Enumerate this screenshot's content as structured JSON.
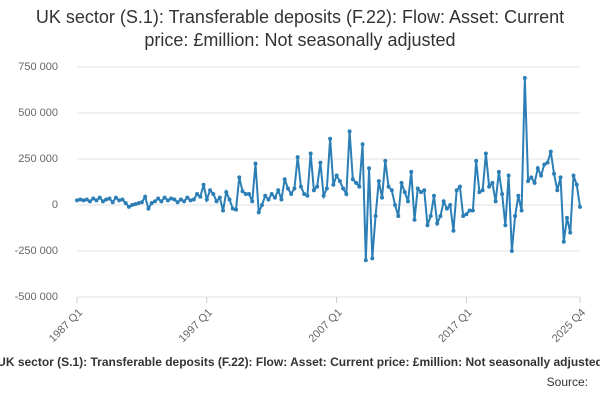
{
  "chart_data": {
    "type": "line",
    "title": "UK sector (S.1): Transferable deposits (F.22): Flow: Asset: Current price: £million: Not seasonally adjusted",
    "source_label": "Source:",
    "categories": [
      "1987 Q1",
      null,
      null,
      null,
      null,
      null,
      null,
      null,
      null,
      null,
      null,
      null,
      null,
      null,
      null,
      null,
      null,
      null,
      null,
      null,
      null,
      null,
      null,
      null,
      null,
      null,
      null,
      null,
      null,
      null,
      null,
      null,
      null,
      null,
      null,
      null,
      null,
      null,
      null,
      null,
      "1997 Q1",
      null,
      null,
      null,
      null,
      null,
      null,
      null,
      null,
      null,
      null,
      null,
      null,
      null,
      null,
      null,
      null,
      null,
      null,
      null,
      null,
      null,
      null,
      null,
      null,
      null,
      null,
      null,
      null,
      null,
      null,
      null,
      null,
      null,
      null,
      null,
      null,
      null,
      null,
      null,
      "2007 Q1",
      null,
      null,
      null,
      null,
      null,
      null,
      null,
      null,
      null,
      null,
      null,
      null,
      null,
      null,
      null,
      null,
      null,
      null,
      null,
      null,
      null,
      null,
      null,
      null,
      null,
      null,
      null,
      null,
      null,
      null,
      null,
      null,
      null,
      null,
      null,
      null,
      null,
      null,
      null,
      "2017 Q1",
      null,
      null,
      null,
      null,
      null,
      null,
      null,
      null,
      null,
      null,
      null,
      null,
      null,
      null,
      null,
      null,
      null,
      null,
      null,
      null,
      null,
      null,
      null,
      null,
      null,
      null,
      null,
      null,
      null,
      null,
      null,
      null,
      null,
      null,
      "2025 Q4"
    ],
    "series": [
      {
        "name": "UK sector (S.1): Transferable deposits (F.22): Flow: Asset: Current price: £million: Not seasonally adjusted",
        "color": "#2b7fb6",
        "values": [
          25000,
          30000,
          25000,
          30000,
          20000,
          35000,
          25000,
          40000,
          20000,
          30000,
          35000,
          15000,
          40000,
          25000,
          30000,
          10000,
          -10000,
          0,
          5000,
          10000,
          15000,
          45000,
          -20000,
          10000,
          20000,
          35000,
          20000,
          40000,
          25000,
          35000,
          30000,
          15000,
          30000,
          20000,
          40000,
          25000,
          30000,
          60000,
          45000,
          110000,
          30000,
          80000,
          60000,
          20000,
          40000,
          -30000,
          70000,
          30000,
          -20000,
          -25000,
          150000,
          75000,
          60000,
          60000,
          20000,
          225000,
          -40000,
          0,
          50000,
          30000,
          60000,
          40000,
          80000,
          30000,
          140000,
          90000,
          60000,
          90000,
          260000,
          100000,
          60000,
          50000,
          280000,
          80000,
          100000,
          230000,
          50000,
          90000,
          360000,
          110000,
          160000,
          130000,
          90000,
          60000,
          400000,
          140000,
          120000,
          100000,
          330000,
          -300000,
          200000,
          -290000,
          -60000,
          130000,
          40000,
          240000,
          100000,
          80000,
          0,
          -60000,
          120000,
          70000,
          20000,
          180000,
          -80000,
          90000,
          70000,
          80000,
          -110000,
          -60000,
          50000,
          -100000,
          -60000,
          20000,
          -20000,
          0,
          -140000,
          80000,
          100000,
          -60000,
          -50000,
          -30000,
          -30000,
          240000,
          70000,
          80000,
          280000,
          100000,
          120000,
          20000,
          180000,
          60000,
          -110000,
          160000,
          -250000,
          -60000,
          50000,
          -30000,
          690000,
          130000,
          150000,
          120000,
          200000,
          160000,
          220000,
          230000,
          290000,
          170000,
          80000,
          150000,
          -200000,
          -70000,
          -150000,
          160000,
          110000,
          -10000
        ]
      }
    ],
    "ylim": [
      -500000,
      750000
    ],
    "yticks": [
      {
        "value": -500000,
        "label": "-500 000"
      },
      {
        "value": -250000,
        "label": "-250 000"
      },
      0,
      {
        "value": 250000,
        "label": "250 000"
      },
      {
        "value": 500000,
        "label": "500 000"
      },
      {
        "value": 750000,
        "label": "750 000"
      }
    ],
    "grid": true
  }
}
